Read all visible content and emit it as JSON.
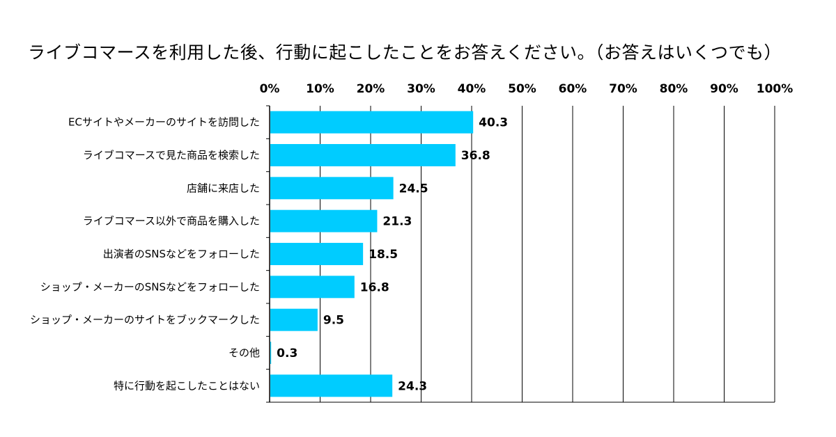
{
  "chart_data": {
    "type": "bar",
    "orientation": "horizontal",
    "title": "ライブコマースを利用した後、行動に起こしたことをお答えください。（お答えはいくつでも）",
    "xlabel": "",
    "ylabel": "",
    "xlim": [
      0,
      100
    ],
    "grid": true,
    "tick_labels": [
      "0%",
      "10%",
      "20%",
      "30%",
      "40%",
      "50%",
      "60%",
      "70%",
      "80%",
      "90%",
      "100%"
    ],
    "categories": [
      "ECサイトやメーカーのサイトを訪問した",
      "ライブコマースで見た商品を検索した",
      "店舗に来店した",
      "ライブコマース以外で商品を購入した",
      "出演者のSNSなどをフォローした",
      "ショップ・メーカーのSNSなどをフォローした",
      "ショップ・メーカーのサイトをブックマークした",
      "その他",
      "特に行動を起こしたことはない"
    ],
    "values": [
      40.3,
      36.8,
      24.5,
      21.3,
      18.5,
      16.8,
      9.5,
      0.3,
      24.3
    ],
    "value_labels": [
      "40.3",
      "36.8",
      "24.5",
      "21.3",
      "18.5",
      "16.8",
      "9.5",
      "0.3",
      "24.3"
    ],
    "colors": {
      "bar": "#00CCFF",
      "grid": "#000000"
    }
  }
}
